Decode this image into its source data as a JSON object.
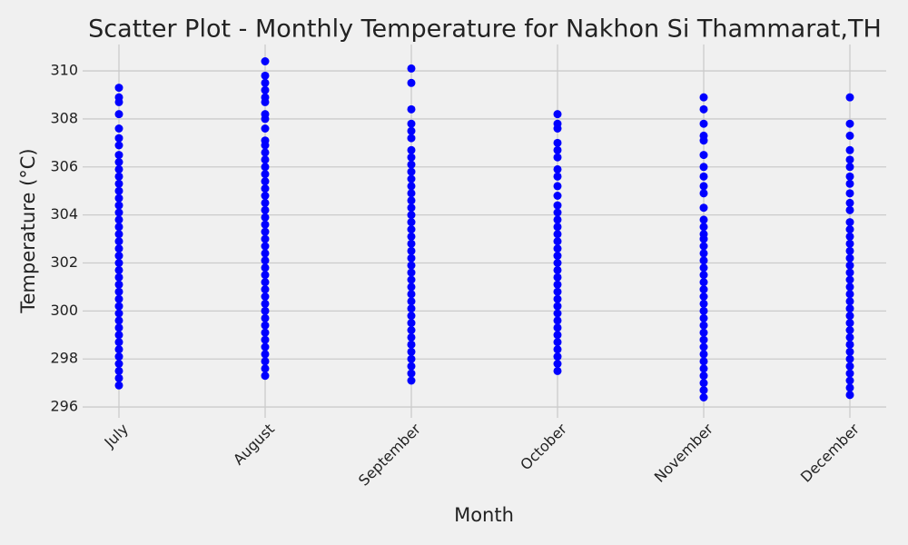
{
  "chart_data": {
    "type": "scatter",
    "title": "Scatter Plot - Monthly Temperature for Nakhon Si Thammarat,TH",
    "x_label": "Month",
    "y_label": "Temperature (°C)",
    "categories": [
      "July",
      "August",
      "September",
      "October",
      "November",
      "December"
    ],
    "color": "#0000ff",
    "grid": true,
    "ylim": [
      295.7,
      311.1
    ],
    "yticks": [
      296,
      298,
      300,
      302,
      304,
      306,
      308,
      310
    ],
    "values": [
      [
        296.9,
        297.2,
        297.5,
        297.8,
        298.1,
        298.4,
        298.7,
        299,
        299.3,
        299.6,
        299.9,
        300.2,
        300.5,
        300.8,
        301.1,
        301.4,
        301.7,
        302,
        302.3,
        302.6,
        302.9,
        303.2,
        303.5,
        303.8,
        304.1,
        304.4,
        304.7,
        305,
        305.3,
        305.6,
        305.9,
        306.2,
        306.5,
        306.9,
        307.2,
        307.6,
        308.2,
        308.7,
        308.9,
        309.3
      ],
      [
        297.3,
        297.6,
        297.9,
        298.2,
        298.5,
        298.8,
        299.1,
        299.4,
        299.7,
        300,
        300.3,
        300.6,
        300.9,
        301.2,
        301.5,
        301.8,
        302.1,
        302.4,
        302.7,
        303,
        303.3,
        303.6,
        303.9,
        304.2,
        304.5,
        304.8,
        305.1,
        305.4,
        305.7,
        306,
        306.3,
        306.6,
        306.9,
        307.1,
        307.6,
        308,
        308.2,
        308.7,
        308.9,
        309.2,
        309.5,
        309.8,
        310.4
      ],
      [
        297.1,
        297.4,
        297.7,
        298,
        298.3,
        298.6,
        298.9,
        299.2,
        299.5,
        299.8,
        300.1,
        300.4,
        300.7,
        301,
        301.3,
        301.6,
        301.9,
        302.2,
        302.5,
        302.8,
        303.1,
        303.4,
        303.7,
        304,
        304.3,
        304.6,
        304.9,
        305.2,
        305.5,
        305.8,
        306.1,
        306.4,
        306.7,
        307.2,
        307.5,
        307.8,
        308.4,
        309.5,
        310.1
      ],
      [
        297.5,
        297.8,
        298.1,
        298.4,
        298.7,
        299,
        299.3,
        299.6,
        299.9,
        300.2,
        300.5,
        300.8,
        301.1,
        301.4,
        301.7,
        302,
        302.3,
        302.6,
        302.9,
        303.2,
        303.5,
        303.8,
        304.1,
        304.4,
        304.8,
        305.2,
        305.6,
        305.9,
        306.4,
        306.7,
        307,
        307.6,
        307.8,
        308.2
      ],
      [
        296.4,
        296.7,
        297,
        297.3,
        297.6,
        297.9,
        298.2,
        298.5,
        298.8,
        299.1,
        299.4,
        299.7,
        300,
        300.3,
        300.6,
        300.9,
        301.2,
        301.5,
        301.8,
        302.1,
        302.4,
        302.7,
        303,
        303.2,
        303.5,
        303.8,
        304.3,
        304.9,
        305.2,
        305.6,
        306,
        306.5,
        307.1,
        307.3,
        307.8,
        308.4,
        308.9
      ],
      [
        296.5,
        296.8,
        297.1,
        297.4,
        297.7,
        298,
        298.3,
        298.6,
        298.9,
        299.2,
        299.5,
        299.8,
        300.1,
        300.4,
        300.7,
        301,
        301.3,
        301.6,
        301.9,
        302.2,
        302.5,
        302.8,
        303.1,
        303.4,
        303.7,
        304.2,
        304.5,
        304.9,
        305.3,
        305.6,
        306,
        306.3,
        306.7,
        307.3,
        307.8,
        308.9
      ]
    ]
  }
}
